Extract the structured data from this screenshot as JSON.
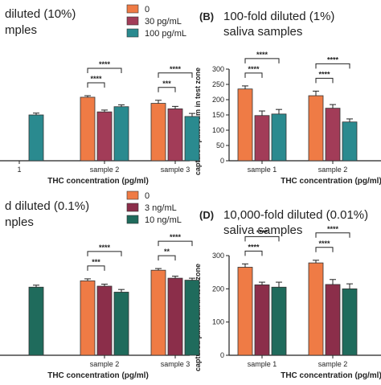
{
  "panels_text": {
    "A": {
      "title_line1": "diluted (10%)",
      "title_line2": "mples"
    },
    "B": {
      "letter": "(B)",
      "title_line1": "100-fold diluted (1%)",
      "title_line2": "saliva samples"
    },
    "C": {
      "title_line1": "d diluted (0.1%)",
      "title_line2": "nples"
    },
    "D": {
      "letter": "(D)",
      "title_line1": "10,000-fold diluted (0.01%)",
      "title_line2": "saliva samples"
    }
  },
  "legends": {
    "top": [
      "0",
      "30 pg/mL",
      "100 pg/mL"
    ],
    "bottom": [
      "0",
      "3 ng/mL",
      "10 ng/mL"
    ]
  },
  "series_colors": [
    "#ef7b45",
    "#a23c58",
    "#2a8a8f"
  ],
  "series_colors_bottom": [
    "#ef7b45",
    "#8b2e4a",
    "#1f6b5c"
  ],
  "chart_data": [
    {
      "type": "bar",
      "panel": "A",
      "xlabel": "THC concentration (pg/ml)",
      "categories": [
        "1",
        "sample 2",
        "sample 3"
      ],
      "series": [
        {
          "values": [
            null,
            208,
            188
          ],
          "errors": [
            null,
            5,
            10
          ]
        },
        {
          "values": [
            null,
            160,
            170
          ],
          "errors": [
            null,
            6,
            8
          ]
        },
        {
          "values": [
            150,
            177,
            145
          ],
          "errors": [
            6,
            6,
            10
          ]
        }
      ],
      "significance": [
        {
          "group": 1,
          "pairs": [
            [
              0,
              2
            ],
            [
              0,
              1
            ]
          ],
          "labels": [
            "****",
            "****"
          ]
        },
        {
          "group": 2,
          "pairs": [
            [
              0,
              2
            ],
            [
              0,
              1
            ]
          ],
          "labels": [
            "****",
            "***"
          ]
        }
      ]
    },
    {
      "type": "bar",
      "panel": "B",
      "ylabel": "captured pixel sum in test zone",
      "xlabel": "THC concentration (pg/ml)",
      "categories": [
        "sample 1",
        "sample 2"
      ],
      "ylim": [
        0,
        300
      ],
      "yticks": [
        "0",
        "50",
        "100",
        "150",
        "200",
        "250",
        "300"
      ],
      "series": [
        {
          "values": [
            235,
            213
          ],
          "errors": [
            10,
            15
          ]
        },
        {
          "values": [
            148,
            172
          ],
          "errors": [
            15,
            12
          ]
        },
        {
          "values": [
            153,
            127
          ],
          "errors": [
            15,
            10
          ]
        }
      ],
      "significance": [
        {
          "group": 0,
          "pairs": [
            [
              0,
              2
            ],
            [
              0,
              1
            ]
          ],
          "labels": [
            "****",
            "****"
          ]
        },
        {
          "group": 1,
          "pairs": [
            [
              0,
              2
            ],
            [
              0,
              1
            ]
          ],
          "labels": [
            "****",
            "****"
          ]
        }
      ]
    },
    {
      "type": "bar",
      "panel": "C",
      "xlabel": "THC concentration (pg/ml)",
      "categories": [
        "",
        "sample 2",
        "sample 3"
      ],
      "series": [
        {
          "values": [
            null,
            224,
            256
          ],
          "errors": [
            null,
            6,
            5
          ]
        },
        {
          "values": [
            null,
            208,
            232
          ],
          "errors": [
            null,
            6,
            6
          ]
        },
        {
          "values": [
            205,
            190,
            226
          ],
          "errors": [
            6,
            8,
            6
          ]
        }
      ],
      "significance": [
        {
          "group": 1,
          "pairs": [
            [
              0,
              2
            ],
            [
              0,
              1
            ]
          ],
          "labels": [
            "****",
            "***"
          ]
        },
        {
          "group": 2,
          "pairs": [
            [
              0,
              2
            ],
            [
              0,
              1
            ]
          ],
          "labels": [
            "****",
            "**"
          ]
        }
      ]
    },
    {
      "type": "bar",
      "panel": "D",
      "ylabel": "captured pixel sum in test zone",
      "xlabel": "THC concentration (pg/ml)",
      "categories": [
        "sample 1",
        "sample 2"
      ],
      "ylim": [
        0,
        300
      ],
      "yticks": [
        "0",
        "100",
        "200",
        "300"
      ],
      "series": [
        {
          "values": [
            265,
            278
          ],
          "errors": [
            10,
            8
          ]
        },
        {
          "values": [
            212,
            213
          ],
          "errors": [
            8,
            15
          ]
        },
        {
          "values": [
            205,
            200
          ],
          "errors": [
            15,
            15
          ]
        }
      ],
      "significance": [
        {
          "group": 0,
          "pairs": [
            [
              0,
              2
            ],
            [
              0,
              1
            ]
          ],
          "labels": [
            "****",
            "****"
          ]
        },
        {
          "group": 1,
          "pairs": [
            [
              0,
              2
            ],
            [
              0,
              1
            ]
          ],
          "labels": [
            "****",
            "****"
          ]
        }
      ]
    }
  ]
}
